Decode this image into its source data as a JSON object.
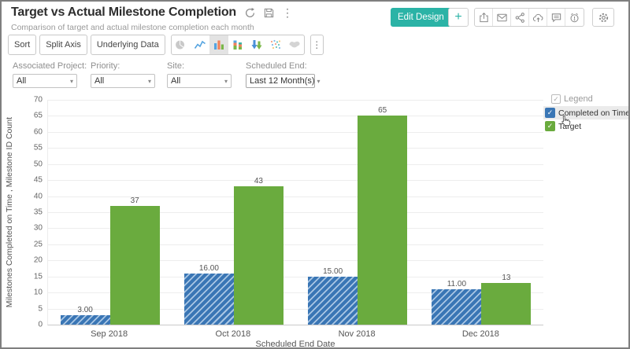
{
  "colors": {
    "teal": "#2bb3a6",
    "bar_blue": "#3a76b5",
    "bar_blue_hatch_light": "#a9c6e4",
    "bar_green": "#6aab3e",
    "legend_highlight": "#ebebeb"
  },
  "icons": {
    "plus": "+",
    "kebab": "⋮",
    "ellipsis": "⋮",
    "caret": "▾",
    "check": "✓"
  },
  "header": {
    "title": "Target vs Actual Milestone Completion",
    "subtitle": "Comparison of target and actual milestone completion each month",
    "edit_design_label": "Edit Design"
  },
  "toolbar": {
    "buttons": [
      "Sort",
      "Split Axis",
      "Underlying Data"
    ],
    "chart_types": [
      "pie",
      "line",
      "bar",
      "stacked-bar",
      "bar-combo",
      "scatter",
      "map"
    ],
    "selected_chart_type": "bar"
  },
  "filters": [
    {
      "label": "Associated Project:",
      "value": "All"
    },
    {
      "label": "Priority:",
      "value": "All"
    },
    {
      "label": "Site:",
      "value": "All"
    },
    {
      "label": "Scheduled End:",
      "value": "Last 12 Month(s)"
    }
  ],
  "legend": {
    "header": "Legend",
    "items": [
      {
        "label": "Completed on Time",
        "color": "#3a76b5",
        "checked": true,
        "highlighted": true
      },
      {
        "label": "Target",
        "color": "#6aab3e",
        "checked": true,
        "highlighted": false
      }
    ]
  },
  "chart_data": {
    "type": "bar",
    "categories": [
      "Sep 2018",
      "Oct 2018",
      "Nov 2018",
      "Dec 2018"
    ],
    "series": [
      {
        "name": "Completed on Time",
        "values": [
          3,
          16,
          15,
          11
        ],
        "labels": [
          "3.00",
          "16.00",
          "15.00",
          "11.00"
        ],
        "color": "#3a76b5",
        "pattern": "diagonal-hatch"
      },
      {
        "name": "Target",
        "values": [
          37,
          43,
          65,
          13
        ],
        "labels": [
          "37",
          "43",
          "65",
          "13"
        ],
        "color": "#6aab3e",
        "pattern": "solid"
      }
    ],
    "title": "Target vs Actual Milestone Completion",
    "xlabel": "Scheduled End Date",
    "ylabel": "Milestones Completed on Time , Milestone ID Count",
    "ylim": [
      0,
      70
    ],
    "ytick_step": 5,
    "grid": true,
    "legend_position": "right"
  }
}
